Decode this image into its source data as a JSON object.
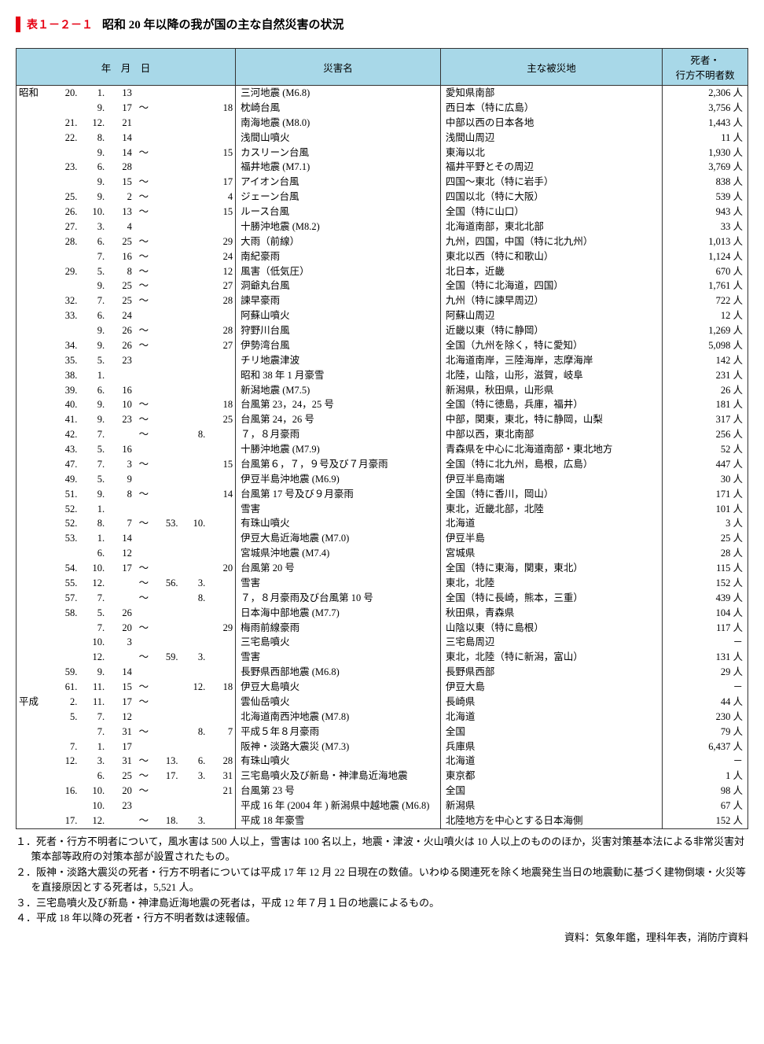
{
  "title": {
    "number": "表１－２－１",
    "text": "昭和 20 年以降の我が国の主な自然災害の状況"
  },
  "headers": {
    "date": "年　月　日",
    "name": "災害名",
    "area": "主な被災地",
    "deaths": "死者・\n行方不明者数"
  },
  "rows": [
    {
      "era": "昭和",
      "y1": "20.",
      "m1": "1.",
      "d1": "13",
      "t": "",
      "y2": "",
      "m2": "",
      "d2": "",
      "name": "三河地震 (M6.8)",
      "area": "愛知県南部",
      "deaths": "2,306 人"
    },
    {
      "era": "",
      "y1": "",
      "m1": "9.",
      "d1": "17",
      "t": "～",
      "y2": "",
      "m2": "",
      "d2": "18",
      "name": "枕崎台風",
      "area": "西日本（特に広島）",
      "deaths": "3,756 人"
    },
    {
      "era": "",
      "y1": "21.",
      "m1": "12.",
      "d1": "21",
      "t": "",
      "y2": "",
      "m2": "",
      "d2": "",
      "name": "南海地震 (M8.0)",
      "area": "中部以西の日本各地",
      "deaths": "1,443 人"
    },
    {
      "era": "",
      "y1": "22.",
      "m1": "8.",
      "d1": "14",
      "t": "",
      "y2": "",
      "m2": "",
      "d2": "",
      "name": "浅間山噴火",
      "area": "浅間山周辺",
      "deaths": "11 人"
    },
    {
      "era": "",
      "y1": "",
      "m1": "9.",
      "d1": "14",
      "t": "～",
      "y2": "",
      "m2": "",
      "d2": "15",
      "name": "カスリーン台風",
      "area": "東海以北",
      "deaths": "1,930 人"
    },
    {
      "era": "",
      "y1": "23.",
      "m1": "6.",
      "d1": "28",
      "t": "",
      "y2": "",
      "m2": "",
      "d2": "",
      "name": "福井地震 (M7.1)",
      "area": "福井平野とその周辺",
      "deaths": "3,769 人"
    },
    {
      "era": "",
      "y1": "",
      "m1": "9.",
      "d1": "15",
      "t": "～",
      "y2": "",
      "m2": "",
      "d2": "17",
      "name": "アイオン台風",
      "area": "四国～東北（特に岩手）",
      "deaths": "838 人"
    },
    {
      "era": "",
      "y1": "25.",
      "m1": "9.",
      "d1": "2",
      "t": "～",
      "y2": "",
      "m2": "",
      "d2": "4",
      "name": "ジェーン台風",
      "area": "四国以北（特に大阪）",
      "deaths": "539 人"
    },
    {
      "era": "",
      "y1": "26.",
      "m1": "10.",
      "d1": "13",
      "t": "～",
      "y2": "",
      "m2": "",
      "d2": "15",
      "name": "ルース台風",
      "area": "全国（特に山口）",
      "deaths": "943 人"
    },
    {
      "era": "",
      "y1": "27.",
      "m1": "3.",
      "d1": "4",
      "t": "",
      "y2": "",
      "m2": "",
      "d2": "",
      "name": "十勝沖地震 (M8.2)",
      "area": "北海道南部，東北北部",
      "deaths": "33 人"
    },
    {
      "era": "",
      "y1": "28.",
      "m1": "6.",
      "d1": "25",
      "t": "～",
      "y2": "",
      "m2": "",
      "d2": "29",
      "name": "大雨（前線）",
      "area": "九州，四国，中国（特に北九州）",
      "deaths": "1,013 人"
    },
    {
      "era": "",
      "y1": "",
      "m1": "7.",
      "d1": "16",
      "t": "～",
      "y2": "",
      "m2": "",
      "d2": "24",
      "name": "南紀豪雨",
      "area": "東北以西（特に和歌山）",
      "deaths": "1,124 人"
    },
    {
      "era": "",
      "y1": "29.",
      "m1": "5.",
      "d1": "8",
      "t": "～",
      "y2": "",
      "m2": "",
      "d2": "12",
      "name": "風害（低気圧）",
      "area": "北日本，近畿",
      "deaths": "670 人"
    },
    {
      "era": "",
      "y1": "",
      "m1": "9.",
      "d1": "25",
      "t": "～",
      "y2": "",
      "m2": "",
      "d2": "27",
      "name": "洞爺丸台風",
      "area": "全国（特に北海道，四国）",
      "deaths": "1,761 人"
    },
    {
      "era": "",
      "y1": "32.",
      "m1": "7.",
      "d1": "25",
      "t": "～",
      "y2": "",
      "m2": "",
      "d2": "28",
      "name": "諫早豪雨",
      "area": "九州（特に諫早周辺）",
      "deaths": "722 人"
    },
    {
      "era": "",
      "y1": "33.",
      "m1": "6.",
      "d1": "24",
      "t": "",
      "y2": "",
      "m2": "",
      "d2": "",
      "name": "阿蘇山噴火",
      "area": "阿蘇山周辺",
      "deaths": "12 人"
    },
    {
      "era": "",
      "y1": "",
      "m1": "9.",
      "d1": "26",
      "t": "～",
      "y2": "",
      "m2": "",
      "d2": "28",
      "name": "狩野川台風",
      "area": "近畿以東（特に静岡）",
      "deaths": "1,269 人"
    },
    {
      "era": "",
      "y1": "34.",
      "m1": "9.",
      "d1": "26",
      "t": "～",
      "y2": "",
      "m2": "",
      "d2": "27",
      "name": "伊勢湾台風",
      "area": "全国（九州を除く，特に愛知）",
      "deaths": "5,098 人"
    },
    {
      "era": "",
      "y1": "35.",
      "m1": "5.",
      "d1": "23",
      "t": "",
      "y2": "",
      "m2": "",
      "d2": "",
      "name": "チリ地震津波",
      "area": "北海道南岸，三陸海岸，志摩海岸",
      "deaths": "142 人"
    },
    {
      "era": "",
      "y1": "38.",
      "m1": "1.",
      "d1": "",
      "t": "",
      "y2": "",
      "m2": "",
      "d2": "",
      "name": "昭和 38 年 1 月豪雪",
      "area": "北陸，山陰，山形，滋賀，岐阜",
      "deaths": "231 人"
    },
    {
      "era": "",
      "y1": "39.",
      "m1": "6.",
      "d1": "16",
      "t": "",
      "y2": "",
      "m2": "",
      "d2": "",
      "name": "新潟地震 (M7.5)",
      "area": "新潟県，秋田県，山形県",
      "deaths": "26 人"
    },
    {
      "era": "",
      "y1": "40.",
      "m1": "9.",
      "d1": "10",
      "t": "～",
      "y2": "",
      "m2": "",
      "d2": "18",
      "name": "台風第 23，24，25 号",
      "area": "全国（特に徳島，兵庫，福井）",
      "deaths": "181 人"
    },
    {
      "era": "",
      "y1": "41.",
      "m1": "9.",
      "d1": "23",
      "t": "～",
      "y2": "",
      "m2": "",
      "d2": "25",
      "name": "台風第 24，26 号",
      "area": "中部，関東，東北，特に静岡，山梨",
      "deaths": "317 人"
    },
    {
      "era": "",
      "y1": "42.",
      "m1": "7.",
      "d1": "",
      "t": "～",
      "y2": "",
      "m2": "8.",
      "d2": "",
      "name": "７，８月豪雨",
      "area": "中部以西，東北南部",
      "deaths": "256 人"
    },
    {
      "era": "",
      "y1": "43.",
      "m1": "5.",
      "d1": "16",
      "t": "",
      "y2": "",
      "m2": "",
      "d2": "",
      "name": "十勝沖地震 (M7.9)",
      "area": "青森県を中心に北海道南部・東北地方",
      "deaths": "52 人"
    },
    {
      "era": "",
      "y1": "47.",
      "m1": "7.",
      "d1": "3",
      "t": "～",
      "y2": "",
      "m2": "",
      "d2": "15",
      "name": "台風第６，７，９号及び７月豪雨",
      "area": "全国（特に北九州，島根，広島）",
      "deaths": "447 人"
    },
    {
      "era": "",
      "y1": "49.",
      "m1": "5.",
      "d1": "9",
      "t": "",
      "y2": "",
      "m2": "",
      "d2": "",
      "name": "伊豆半島沖地震 (M6.9)",
      "area": "伊豆半島南端",
      "deaths": "30 人"
    },
    {
      "era": "",
      "y1": "51.",
      "m1": "9.",
      "d1": "8",
      "t": "～",
      "y2": "",
      "m2": "",
      "d2": "14",
      "name": "台風第 17 号及び９月豪雨",
      "area": "全国（特に香川，岡山）",
      "deaths": "171 人"
    },
    {
      "era": "",
      "y1": "52.",
      "m1": "1.",
      "d1": "",
      "t": "",
      "y2": "",
      "m2": "",
      "d2": "",
      "name": "雪害",
      "area": "東北，近畿北部，北陸",
      "deaths": "101 人"
    },
    {
      "era": "",
      "y1": "52.",
      "m1": "8.",
      "d1": "7",
      "t": "～",
      "y2": "53.",
      "m2": "10.",
      "d2": "",
      "name": "有珠山噴火",
      "area": "北海道",
      "deaths": "3 人"
    },
    {
      "era": "",
      "y1": "53.",
      "m1": "1.",
      "d1": "14",
      "t": "",
      "y2": "",
      "m2": "",
      "d2": "",
      "name": "伊豆大島近海地震 (M7.0)",
      "area": "伊豆半島",
      "deaths": "25 人"
    },
    {
      "era": "",
      "y1": "",
      "m1": "6.",
      "d1": "12",
      "t": "",
      "y2": "",
      "m2": "",
      "d2": "",
      "name": "宮城県沖地震 (M7.4)",
      "area": "宮城県",
      "deaths": "28 人"
    },
    {
      "era": "",
      "y1": "54.",
      "m1": "10.",
      "d1": "17",
      "t": "～",
      "y2": "",
      "m2": "",
      "d2": "20",
      "name": "台風第 20 号",
      "area": "全国（特に東海，関東，東北）",
      "deaths": "115 人"
    },
    {
      "era": "",
      "y1": "55.",
      "m1": "12.",
      "d1": "",
      "t": "～",
      "y2": "56.",
      "m2": "3.",
      "d2": "",
      "name": "雪害",
      "area": "東北，北陸",
      "deaths": "152 人"
    },
    {
      "era": "",
      "y1": "57.",
      "m1": "7.",
      "d1": "",
      "t": "～",
      "y2": "",
      "m2": "8.",
      "d2": "",
      "name": "７，８月豪雨及び台風第 10 号",
      "area": "全国（特に長崎，熊本，三重）",
      "deaths": "439 人"
    },
    {
      "era": "",
      "y1": "58.",
      "m1": "5.",
      "d1": "26",
      "t": "",
      "y2": "",
      "m2": "",
      "d2": "",
      "name": "日本海中部地震 (M7.7)",
      "area": "秋田県，青森県",
      "deaths": "104 人"
    },
    {
      "era": "",
      "y1": "",
      "m1": "7.",
      "d1": "20",
      "t": "～",
      "y2": "",
      "m2": "",
      "d2": "29",
      "name": "梅雨前線豪雨",
      "area": "山陰以東（特に島根）",
      "deaths": "117 人"
    },
    {
      "era": "",
      "y1": "",
      "m1": "10.",
      "d1": "3",
      "t": "",
      "y2": "",
      "m2": "",
      "d2": "",
      "name": "三宅島噴火",
      "area": "三宅島周辺",
      "deaths": "－"
    },
    {
      "era": "",
      "y1": "",
      "m1": "12.",
      "d1": "",
      "t": "～",
      "y2": "59.",
      "m2": "3.",
      "d2": "",
      "name": "雪害",
      "area": "東北，北陸（特に新潟，富山）",
      "deaths": "131 人"
    },
    {
      "era": "",
      "y1": "59.",
      "m1": "9.",
      "d1": "14",
      "t": "",
      "y2": "",
      "m2": "",
      "d2": "",
      "name": "長野県西部地震 (M6.8)",
      "area": "長野県西部",
      "deaths": "29 人"
    },
    {
      "era": "",
      "y1": "61.",
      "m1": "11.",
      "d1": "15",
      "t": "～",
      "y2": "",
      "m2": "12.",
      "d2": "18",
      "name": "伊豆大島噴火",
      "area": "伊豆大島",
      "deaths": "－"
    },
    {
      "era": "平成",
      "y1": "2.",
      "m1": "11.",
      "d1": "17",
      "t": "～",
      "y2": "",
      "m2": "",
      "d2": "",
      "name": "雲仙岳噴火",
      "area": "長崎県",
      "deaths": "44 人"
    },
    {
      "era": "",
      "y1": "5.",
      "m1": "7.",
      "d1": "12",
      "t": "",
      "y2": "",
      "m2": "",
      "d2": "",
      "name": "北海道南西沖地震 (M7.8)",
      "area": "北海道",
      "deaths": "230 人"
    },
    {
      "era": "",
      "y1": "",
      "m1": "7.",
      "d1": "31",
      "t": "～",
      "y2": "",
      "m2": "8.",
      "d2": "7",
      "name": "平成５年８月豪雨",
      "area": "全国",
      "deaths": "79 人"
    },
    {
      "era": "",
      "y1": "7.",
      "m1": "1.",
      "d1": "17",
      "t": "",
      "y2": "",
      "m2": "",
      "d2": "",
      "name": "阪神・淡路大震災 (M7.3)",
      "area": "兵庫県",
      "deaths": "6,437 人"
    },
    {
      "era": "",
      "y1": "12.",
      "m1": "3.",
      "d1": "31",
      "t": "～",
      "y2": "13.",
      "m2": "6.",
      "d2": "28",
      "name": "有珠山噴火",
      "area": "北海道",
      "deaths": "－"
    },
    {
      "era": "",
      "y1": "",
      "m1": "6.",
      "d1": "25",
      "t": "～",
      "y2": "17.",
      "m2": "3.",
      "d2": "31",
      "name": "三宅島噴火及び新島・神津島近海地震",
      "area": "東京都",
      "deaths": "1 人"
    },
    {
      "era": "",
      "y1": "16.",
      "m1": "10.",
      "d1": "20",
      "t": "～",
      "y2": "",
      "m2": "",
      "d2": "21",
      "name": "台風第 23 号",
      "area": "全国",
      "deaths": "98 人"
    },
    {
      "era": "",
      "y1": "",
      "m1": "10.",
      "d1": "23",
      "t": "",
      "y2": "",
      "m2": "",
      "d2": "",
      "name": "平成 16 年 (2004 年 ) 新潟県中越地震 (M6.8)",
      "area": "新潟県",
      "deaths": "67 人"
    },
    {
      "era": "",
      "y1": "17.",
      "m1": "12.",
      "d1": "",
      "t": "～",
      "y2": "18.",
      "m2": "3.",
      "d2": "",
      "name": "平成 18 年豪雪",
      "area": "北陸地方を中心とする日本海側",
      "deaths": "152 人"
    }
  ],
  "notes": [
    "１．死者・行方不明者について，風水害は 500 人以上，雪害は 100 名以上，地震・津波・火山噴火は 10 人以上のもののほか，災害対策基本法による非常災害対策本部等政府の対策本部が設置されたもの。",
    "２．阪神・淡路大震災の死者・行方不明者については平成 17 年 12 月 22 日現在の数値。いわゆる関連死を除く地震発生当日の地震動に基づく建物倒壊・火災等を直接原因とする死者は，5,521 人。",
    "３．三宅島噴火及び新島・神津島近海地震の死者は，平成 12 年７月１日の地震によるもの。",
    "４．平成 18 年以降の死者・行方不明者数は速報値。"
  ],
  "source": "資料：気象年鑑，理科年表，消防庁資料"
}
